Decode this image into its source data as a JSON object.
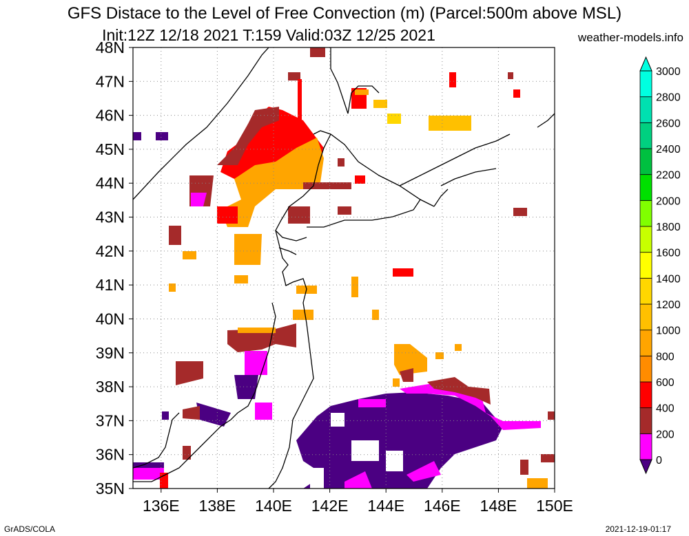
{
  "title_line1": "GFS Distace to the Level of Free Convection (m) (Parcel:500m above MSL)",
  "title_line2": "Init:12Z 12/18 2021 T:159 Valid:03Z 12/25 2021",
  "site": "weather-models.info",
  "footer_left": "GrADS/COLA",
  "footer_right": "2021-12-19-01:17",
  "map": {
    "lon_ticks": [
      "136E",
      "138E",
      "140E",
      "142E",
      "144E",
      "146E",
      "148E",
      "150E"
    ],
    "lat_ticks": [
      "35N",
      "36N",
      "37N",
      "38N",
      "39N",
      "40N",
      "41N",
      "42N",
      "43N",
      "44N",
      "45N",
      "46N",
      "47N",
      "48N"
    ],
    "lon_range": [
      135,
      150
    ],
    "lat_range": [
      35,
      48
    ],
    "grid": "dotted"
  },
  "colorbar": {
    "labels": [
      "0",
      "200",
      "400",
      "600",
      "800",
      "1000",
      "1200",
      "1400",
      "1600",
      "1800",
      "2000",
      "2200",
      "2400",
      "2600",
      "2800",
      "3000"
    ],
    "colors": [
      "#4b0082",
      "#ff00ff",
      "#a52a2a",
      "#ff0000",
      "#ff8c00",
      "#ffa500",
      "#ffc000",
      "#ffd700",
      "#ffff00",
      "#c8ff00",
      "#80ff00",
      "#00e000",
      "#00c040",
      "#00d080",
      "#00e0b0",
      "#00ffe0"
    ]
  }
}
